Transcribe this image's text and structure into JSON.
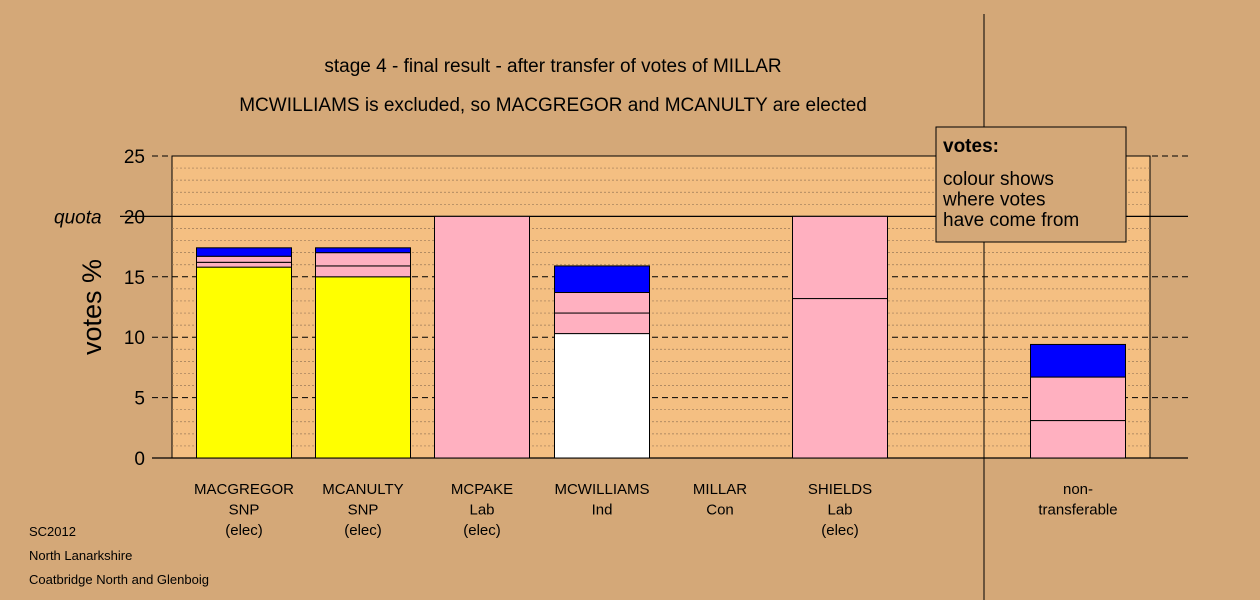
{
  "chart_data": {
    "type": "bar",
    "stacked": true,
    "title": "stage 4 - final result - after transfer of votes of MILLAR",
    "subtitle": "MCWILLIAMS is excluded, so MACGREGOR and MCANULTY are elected",
    "ylabel": "votes %",
    "ylim": [
      0,
      25
    ],
    "yticks": [
      0,
      5,
      10,
      15,
      20,
      25
    ],
    "quota": {
      "label": "quota",
      "value": 20
    },
    "grid": true,
    "colors": {
      "background": "#d4a878",
      "plot": "#f4bf82",
      "snp": "#ffff00",
      "lab": "#ffb0c0",
      "ind": "#ffffff",
      "con": "#0000ff"
    },
    "bars": [
      {
        "lines": [
          "MACGREGOR",
          "SNP",
          "(elec)"
        ],
        "segments": [
          {
            "value": 15.8,
            "color": "#ffff00"
          },
          {
            "value": 0.4,
            "color": "#ffb0c0"
          },
          {
            "value": 0.5,
            "color": "#ffb0c0"
          },
          {
            "value": 0.7,
            "color": "#0000ff"
          }
        ]
      },
      {
        "lines": [
          "MCANULTY",
          "SNP",
          "(elec)"
        ],
        "segments": [
          {
            "value": 15.0,
            "color": "#ffff00"
          },
          {
            "value": 0.9,
            "color": "#ffb0c0"
          },
          {
            "value": 1.1,
            "color": "#ffb0c0"
          },
          {
            "value": 0.4,
            "color": "#0000ff"
          }
        ]
      },
      {
        "lines": [
          "MCPAKE",
          "Lab",
          "(elec)"
        ],
        "segments": [
          {
            "value": 20.0,
            "color": "#ffb0c0"
          }
        ]
      },
      {
        "lines": [
          "MCWILLIAMS",
          "Ind"
        ],
        "segments": [
          {
            "value": 10.3,
            "color": "#ffffff"
          },
          {
            "value": 1.7,
            "color": "#ffb0c0"
          },
          {
            "value": 1.7,
            "color": "#ffb0c0"
          },
          {
            "value": 2.2,
            "color": "#0000ff"
          }
        ]
      },
      {
        "lines": [
          "MILLAR",
          "Con"
        ],
        "segments": []
      },
      {
        "lines": [
          "SHIELDS",
          "Lab",
          "(elec)"
        ],
        "segments": [
          {
            "value": 13.2,
            "color": "#ffb0c0"
          },
          {
            "value": 6.8,
            "color": "#ffb0c0"
          }
        ]
      },
      {
        "lines": [
          "non-",
          "transferable"
        ],
        "separate": true,
        "segments": [
          {
            "value": 3.1,
            "color": "#ffb0c0"
          },
          {
            "value": 3.6,
            "color": "#ffb0c0"
          },
          {
            "value": 2.7,
            "color": "#0000ff"
          }
        ]
      }
    ],
    "legend": {
      "heading": "votes:",
      "lines": [
        "colour shows",
        "where votes",
        "have come from"
      ],
      "placement": "top-right"
    }
  },
  "footer": [
    "SC2012",
    "North Lanarkshire",
    "Coatbridge North and Glenboig"
  ]
}
